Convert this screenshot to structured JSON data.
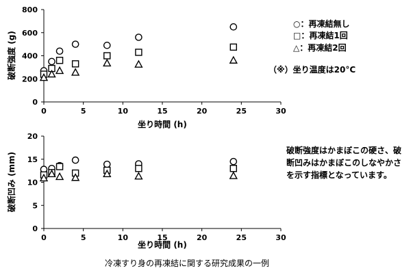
{
  "chart_data": [
    {
      "type": "scatter",
      "xlabel": "坐り時間 (h)",
      "ylabel": "破断強度 (g)",
      "xlim": [
        0,
        30
      ],
      "ylim": [
        0,
        800
      ],
      "xticks": [
        0,
        5,
        10,
        15,
        20,
        25,
        30
      ],
      "yticks": [
        0,
        200,
        400,
        600,
        800
      ],
      "grid": false,
      "legend_position": "top-right",
      "series": [
        {
          "name": "○：再凍結無し",
          "marker": "circle",
          "points": [
            [
              0,
              270
            ],
            [
              1,
              350
            ],
            [
              2,
              440
            ],
            [
              4,
              500
            ],
            [
              8,
              490
            ],
            [
              12,
              560
            ],
            [
              24,
              650
            ]
          ]
        },
        {
          "name": "□：再凍結1回",
          "marker": "square",
          "points": [
            [
              0,
              240
            ],
            [
              1,
              290
            ],
            [
              2,
              360
            ],
            [
              4,
              330
            ],
            [
              8,
              400
            ],
            [
              12,
              430
            ],
            [
              24,
              475
            ]
          ]
        },
        {
          "name": "△：再凍結2回",
          "marker": "triangle",
          "points": [
            [
              0,
              210
            ],
            [
              1,
              240
            ],
            [
              2,
              270
            ],
            [
              4,
              255
            ],
            [
              8,
              335
            ],
            [
              12,
              325
            ],
            [
              24,
              360
            ]
          ]
        }
      ]
    },
    {
      "type": "scatter",
      "xlabel": "坐り時間 (h)",
      "ylabel": "破断凹み (mm)",
      "xlim": [
        0,
        30
      ],
      "ylim": [
        0,
        20
      ],
      "xticks": [
        0,
        5,
        10,
        15,
        20,
        25,
        30
      ],
      "yticks": [
        0,
        5,
        10,
        15,
        20
      ],
      "grid": false,
      "series": [
        {
          "marker": "circle",
          "points": [
            [
              0,
              12.8
            ],
            [
              1,
              13.0
            ],
            [
              2,
              13.6
            ],
            [
              4,
              14.8
            ],
            [
              8,
              13.9
            ],
            [
              12,
              14.0
            ],
            [
              24,
              14.5
            ]
          ]
        },
        {
          "marker": "square",
          "points": [
            [
              0,
              11.6
            ],
            [
              1,
              12.1
            ],
            [
              2,
              13.4
            ],
            [
              4,
              12.0
            ],
            [
              8,
              12.6
            ],
            [
              12,
              13.0
            ],
            [
              24,
              13.0
            ]
          ]
        },
        {
          "marker": "triangle",
          "points": [
            [
              0,
              10.9
            ],
            [
              1,
              11.8
            ],
            [
              2,
              11.2
            ],
            [
              4,
              11.0
            ],
            [
              8,
              11.8
            ],
            [
              12,
              11.3
            ],
            [
              24,
              11.4
            ]
          ]
        }
      ]
    }
  ],
  "notes": {
    "temperature": "（※）坐り温度は20°C",
    "description": [
      "破断強度はかまぼこの硬さ、破",
      "断凹みはかまぼこのしなやかさ",
      "を示す指標となっています。"
    ]
  },
  "caption": "冷凍すり身の再凍結に関する研究成果の一例"
}
